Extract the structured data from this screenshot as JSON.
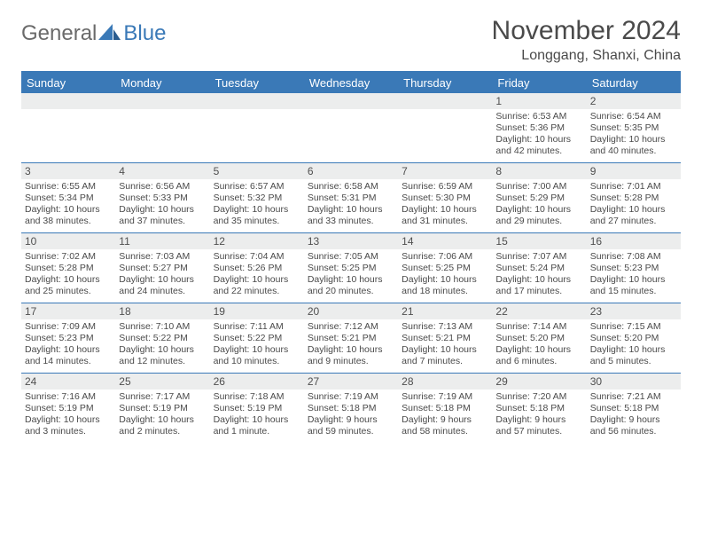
{
  "brand": {
    "part1": "General",
    "part2": "Blue"
  },
  "title": "November 2024",
  "location": "Longgang, Shanxi, China",
  "colors": {
    "accent": "#3a79b7",
    "dowBg": "#3a79b7",
    "dowText": "#ffffff",
    "dayBarBg": "#eceded",
    "text": "#4a4a4a",
    "logoGray": "#6a6a6a"
  },
  "daysOfWeek": [
    "Sunday",
    "Monday",
    "Tuesday",
    "Wednesday",
    "Thursday",
    "Friday",
    "Saturday"
  ],
  "weeks": [
    [
      {
        "n": "",
        "sunrise": "",
        "sunset": "",
        "daylight": ""
      },
      {
        "n": "",
        "sunrise": "",
        "sunset": "",
        "daylight": ""
      },
      {
        "n": "",
        "sunrise": "",
        "sunset": "",
        "daylight": ""
      },
      {
        "n": "",
        "sunrise": "",
        "sunset": "",
        "daylight": ""
      },
      {
        "n": "",
        "sunrise": "",
        "sunset": "",
        "daylight": ""
      },
      {
        "n": "1",
        "sunrise": "Sunrise: 6:53 AM",
        "sunset": "Sunset: 5:36 PM",
        "daylight": "Daylight: 10 hours and 42 minutes."
      },
      {
        "n": "2",
        "sunrise": "Sunrise: 6:54 AM",
        "sunset": "Sunset: 5:35 PM",
        "daylight": "Daylight: 10 hours and 40 minutes."
      }
    ],
    [
      {
        "n": "3",
        "sunrise": "Sunrise: 6:55 AM",
        "sunset": "Sunset: 5:34 PM",
        "daylight": "Daylight: 10 hours and 38 minutes."
      },
      {
        "n": "4",
        "sunrise": "Sunrise: 6:56 AM",
        "sunset": "Sunset: 5:33 PM",
        "daylight": "Daylight: 10 hours and 37 minutes."
      },
      {
        "n": "5",
        "sunrise": "Sunrise: 6:57 AM",
        "sunset": "Sunset: 5:32 PM",
        "daylight": "Daylight: 10 hours and 35 minutes."
      },
      {
        "n": "6",
        "sunrise": "Sunrise: 6:58 AM",
        "sunset": "Sunset: 5:31 PM",
        "daylight": "Daylight: 10 hours and 33 minutes."
      },
      {
        "n": "7",
        "sunrise": "Sunrise: 6:59 AM",
        "sunset": "Sunset: 5:30 PM",
        "daylight": "Daylight: 10 hours and 31 minutes."
      },
      {
        "n": "8",
        "sunrise": "Sunrise: 7:00 AM",
        "sunset": "Sunset: 5:29 PM",
        "daylight": "Daylight: 10 hours and 29 minutes."
      },
      {
        "n": "9",
        "sunrise": "Sunrise: 7:01 AM",
        "sunset": "Sunset: 5:28 PM",
        "daylight": "Daylight: 10 hours and 27 minutes."
      }
    ],
    [
      {
        "n": "10",
        "sunrise": "Sunrise: 7:02 AM",
        "sunset": "Sunset: 5:28 PM",
        "daylight": "Daylight: 10 hours and 25 minutes."
      },
      {
        "n": "11",
        "sunrise": "Sunrise: 7:03 AM",
        "sunset": "Sunset: 5:27 PM",
        "daylight": "Daylight: 10 hours and 24 minutes."
      },
      {
        "n": "12",
        "sunrise": "Sunrise: 7:04 AM",
        "sunset": "Sunset: 5:26 PM",
        "daylight": "Daylight: 10 hours and 22 minutes."
      },
      {
        "n": "13",
        "sunrise": "Sunrise: 7:05 AM",
        "sunset": "Sunset: 5:25 PM",
        "daylight": "Daylight: 10 hours and 20 minutes."
      },
      {
        "n": "14",
        "sunrise": "Sunrise: 7:06 AM",
        "sunset": "Sunset: 5:25 PM",
        "daylight": "Daylight: 10 hours and 18 minutes."
      },
      {
        "n": "15",
        "sunrise": "Sunrise: 7:07 AM",
        "sunset": "Sunset: 5:24 PM",
        "daylight": "Daylight: 10 hours and 17 minutes."
      },
      {
        "n": "16",
        "sunrise": "Sunrise: 7:08 AM",
        "sunset": "Sunset: 5:23 PM",
        "daylight": "Daylight: 10 hours and 15 minutes."
      }
    ],
    [
      {
        "n": "17",
        "sunrise": "Sunrise: 7:09 AM",
        "sunset": "Sunset: 5:23 PM",
        "daylight": "Daylight: 10 hours and 14 minutes."
      },
      {
        "n": "18",
        "sunrise": "Sunrise: 7:10 AM",
        "sunset": "Sunset: 5:22 PM",
        "daylight": "Daylight: 10 hours and 12 minutes."
      },
      {
        "n": "19",
        "sunrise": "Sunrise: 7:11 AM",
        "sunset": "Sunset: 5:22 PM",
        "daylight": "Daylight: 10 hours and 10 minutes."
      },
      {
        "n": "20",
        "sunrise": "Sunrise: 7:12 AM",
        "sunset": "Sunset: 5:21 PM",
        "daylight": "Daylight: 10 hours and 9 minutes."
      },
      {
        "n": "21",
        "sunrise": "Sunrise: 7:13 AM",
        "sunset": "Sunset: 5:21 PM",
        "daylight": "Daylight: 10 hours and 7 minutes."
      },
      {
        "n": "22",
        "sunrise": "Sunrise: 7:14 AM",
        "sunset": "Sunset: 5:20 PM",
        "daylight": "Daylight: 10 hours and 6 minutes."
      },
      {
        "n": "23",
        "sunrise": "Sunrise: 7:15 AM",
        "sunset": "Sunset: 5:20 PM",
        "daylight": "Daylight: 10 hours and 5 minutes."
      }
    ],
    [
      {
        "n": "24",
        "sunrise": "Sunrise: 7:16 AM",
        "sunset": "Sunset: 5:19 PM",
        "daylight": "Daylight: 10 hours and 3 minutes."
      },
      {
        "n": "25",
        "sunrise": "Sunrise: 7:17 AM",
        "sunset": "Sunset: 5:19 PM",
        "daylight": "Daylight: 10 hours and 2 minutes."
      },
      {
        "n": "26",
        "sunrise": "Sunrise: 7:18 AM",
        "sunset": "Sunset: 5:19 PM",
        "daylight": "Daylight: 10 hours and 1 minute."
      },
      {
        "n": "27",
        "sunrise": "Sunrise: 7:19 AM",
        "sunset": "Sunset: 5:18 PM",
        "daylight": "Daylight: 9 hours and 59 minutes."
      },
      {
        "n": "28",
        "sunrise": "Sunrise: 7:19 AM",
        "sunset": "Sunset: 5:18 PM",
        "daylight": "Daylight: 9 hours and 58 minutes."
      },
      {
        "n": "29",
        "sunrise": "Sunrise: 7:20 AM",
        "sunset": "Sunset: 5:18 PM",
        "daylight": "Daylight: 9 hours and 57 minutes."
      },
      {
        "n": "30",
        "sunrise": "Sunrise: 7:21 AM",
        "sunset": "Sunset: 5:18 PM",
        "daylight": "Daylight: 9 hours and 56 minutes."
      }
    ]
  ]
}
